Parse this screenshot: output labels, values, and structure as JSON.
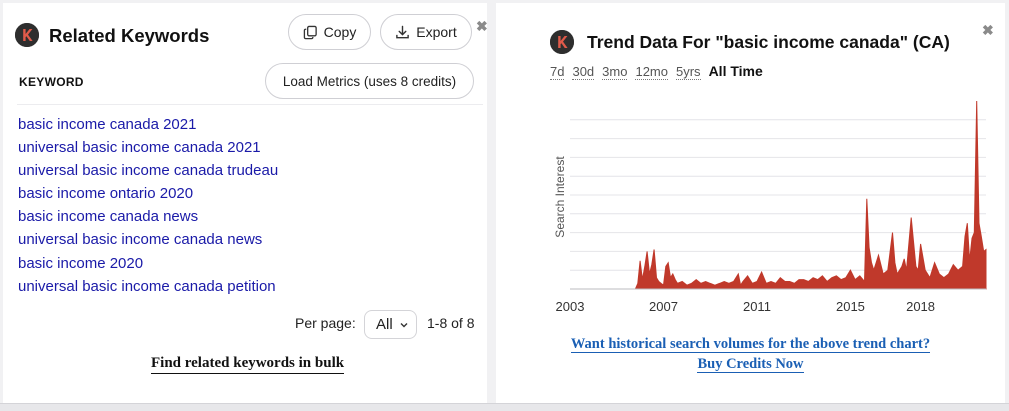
{
  "related_keywords": {
    "title": "Related Keywords",
    "copy_label": "Copy",
    "export_label": "Export",
    "close_symbol": "✖",
    "column_header": "KEYWORD",
    "load_metrics_label": "Load Metrics (uses 8 credits)",
    "keywords": [
      "basic income canada 2021",
      "universal basic income canada 2021",
      "universal basic income canada trudeau",
      "basic income ontario 2020",
      "basic income canada news",
      "universal basic income canada news",
      "basic income 2020",
      "universal basic income canada petition"
    ],
    "per_page_label": "Per page:",
    "per_page_value": "All",
    "range_label": "1-8 of 8",
    "bulk_link": "Find related keywords in bulk"
  },
  "trend": {
    "title": "Trend Data For \"basic income canada\" (CA)",
    "close_symbol": "✖",
    "ranges": [
      "7d",
      "30d",
      "3mo",
      "12mo",
      "5yrs",
      "All Time"
    ],
    "active_range": "All Time",
    "cta_line1": "Want historical search volumes for the above trend chart?",
    "cta_line2": "Buy Credits Now"
  },
  "chart_data": {
    "type": "area",
    "ylabel": "Search Interest",
    "xlabel": "",
    "x_ticks": [
      "2003",
      "2007",
      "2011",
      "2015",
      "2018"
    ],
    "x_tick_years": [
      2003,
      2007,
      2011,
      2015,
      2018
    ],
    "xlim": [
      2003,
      2020.8
    ],
    "ylim": [
      0,
      100
    ],
    "grid": true,
    "series_color": "#c0392b",
    "x": [
      2003.0,
      2004.0,
      2005.0,
      2005.8,
      2005.9,
      2006.0,
      2006.1,
      2006.2,
      2006.3,
      2006.4,
      2006.5,
      2006.6,
      2006.7,
      2006.8,
      2006.9,
      2007.0,
      2007.1,
      2007.2,
      2007.3,
      2007.4,
      2007.5,
      2007.6,
      2007.8,
      2008.0,
      2008.2,
      2008.4,
      2008.6,
      2008.8,
      2009.0,
      2009.2,
      2009.4,
      2009.6,
      2009.8,
      2010.0,
      2010.2,
      2010.3,
      2010.4,
      2010.6,
      2010.8,
      2011.0,
      2011.2,
      2011.4,
      2011.6,
      2011.8,
      2012.0,
      2012.2,
      2012.4,
      2012.6,
      2012.8,
      2013.0,
      2013.2,
      2013.4,
      2013.6,
      2013.8,
      2014.0,
      2014.2,
      2014.4,
      2014.6,
      2014.8,
      2015.0,
      2015.2,
      2015.4,
      2015.6,
      2015.7,
      2015.8,
      2015.9,
      2016.0,
      2016.2,
      2016.4,
      2016.6,
      2016.8,
      2016.9,
      2017.0,
      2017.2,
      2017.3,
      2017.4,
      2017.6,
      2017.8,
      2017.9,
      2018.0,
      2018.2,
      2018.4,
      2018.6,
      2018.8,
      2019.0,
      2019.2,
      2019.4,
      2019.6,
      2019.8,
      2019.9,
      2020.0,
      2020.1,
      2020.2,
      2020.3,
      2020.4,
      2020.5,
      2020.6,
      2020.7,
      2020.8
    ],
    "y": [
      0,
      0,
      0,
      0,
      3,
      15,
      5,
      12,
      20,
      8,
      13,
      21,
      6,
      4,
      3,
      2,
      12,
      14,
      6,
      8,
      5,
      3,
      4,
      2,
      3,
      5,
      3,
      4,
      3,
      2,
      3,
      4,
      3,
      4,
      8,
      2,
      4,
      7,
      3,
      4,
      9,
      3,
      4,
      3,
      6,
      4,
      4,
      3,
      5,
      5,
      4,
      6,
      5,
      7,
      4,
      6,
      7,
      5,
      6,
      10,
      5,
      7,
      4,
      48,
      22,
      14,
      10,
      18,
      8,
      10,
      30,
      14,
      8,
      12,
      16,
      10,
      38,
      12,
      10,
      24,
      10,
      6,
      14,
      8,
      6,
      8,
      13,
      10,
      12,
      28,
      35,
      15,
      27,
      30,
      100,
      35,
      28,
      20,
      21
    ]
  }
}
